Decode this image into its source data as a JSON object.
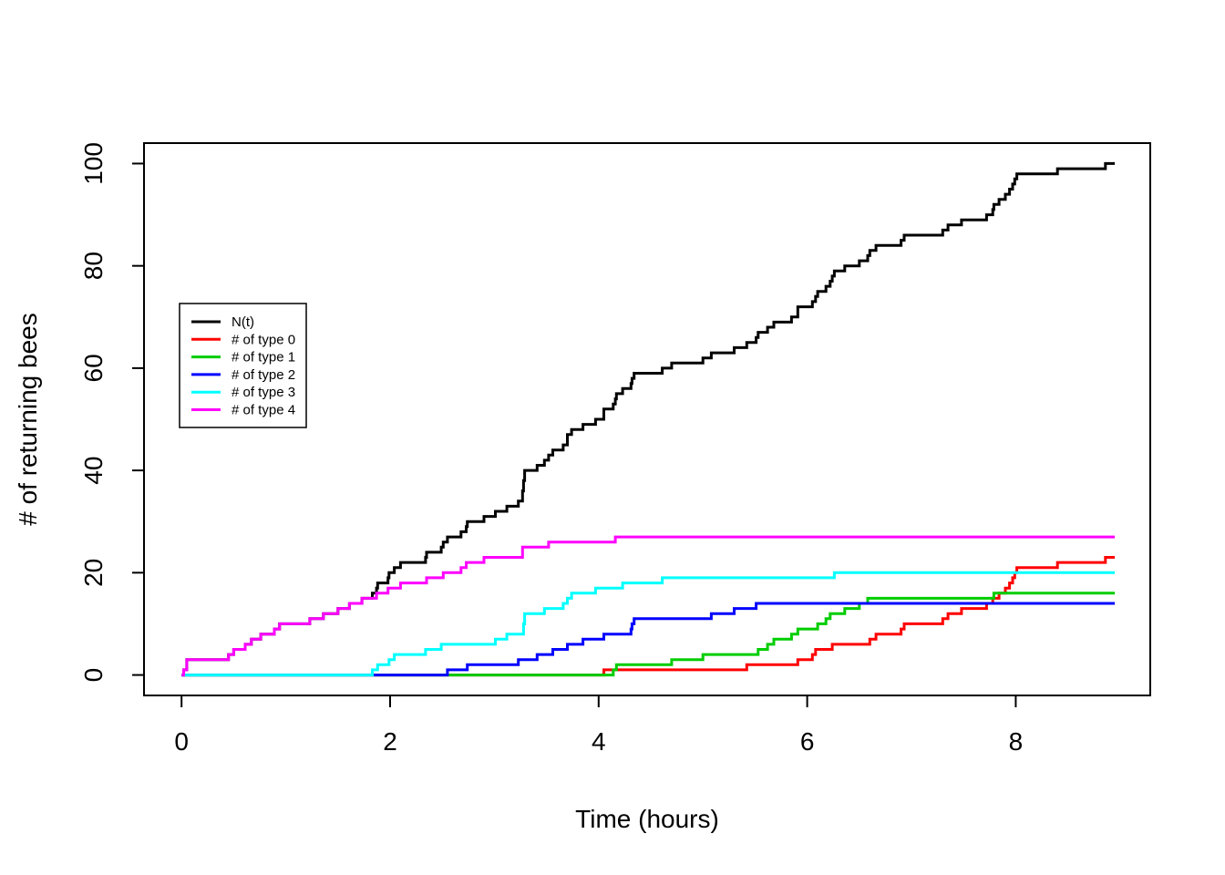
{
  "chart_data": {
    "type": "line",
    "subtype": "step",
    "title": "",
    "xlabel": "Time (hours)",
    "ylabel": "# of returning bees",
    "xticks": [
      0,
      2,
      4,
      6,
      8
    ],
    "yticks": [
      0,
      20,
      40,
      60,
      80,
      100
    ],
    "xlim": [
      -0.36,
      9.29
    ],
    "ylim": [
      -4,
      104
    ],
    "x_start": 0,
    "t_end": 8.95,
    "grid": false,
    "legend_position": "left-middle",
    "series": [
      {
        "name": "N(t)",
        "color": "#000000",
        "steps": [
          [
            0.02,
            1
          ],
          [
            0.05,
            3
          ],
          [
            0.45,
            4
          ],
          [
            0.5,
            5
          ],
          [
            0.61,
            6
          ],
          [
            0.67,
            7
          ],
          [
            0.76,
            8
          ],
          [
            0.89,
            9
          ],
          [
            0.94,
            10
          ],
          [
            1.23,
            11
          ],
          [
            1.36,
            12
          ],
          [
            1.5,
            13
          ],
          [
            1.61,
            14
          ],
          [
            1.73,
            15
          ],
          [
            1.83,
            16
          ],
          [
            1.87,
            17
          ],
          [
            1.88,
            18
          ],
          [
            1.98,
            19
          ],
          [
            1.99,
            20
          ],
          [
            2.04,
            21
          ],
          [
            2.1,
            22
          ],
          [
            2.34,
            23
          ],
          [
            2.35,
            24
          ],
          [
            2.49,
            25
          ],
          [
            2.51,
            26
          ],
          [
            2.55,
            27
          ],
          [
            2.68,
            28
          ],
          [
            2.73,
            29
          ],
          [
            2.74,
            30
          ],
          [
            2.9,
            31
          ],
          [
            3.01,
            32
          ],
          [
            3.12,
            33
          ],
          [
            3.23,
            34
          ],
          [
            3.27,
            36
          ],
          [
            3.28,
            38
          ],
          [
            3.29,
            40
          ],
          [
            3.41,
            41
          ],
          [
            3.48,
            42
          ],
          [
            3.52,
            43
          ],
          [
            3.56,
            44
          ],
          [
            3.66,
            45
          ],
          [
            3.7,
            47
          ],
          [
            3.74,
            48
          ],
          [
            3.85,
            49
          ],
          [
            3.97,
            50
          ],
          [
            4.05,
            52
          ],
          [
            4.14,
            53
          ],
          [
            4.16,
            54
          ],
          [
            4.17,
            55
          ],
          [
            4.23,
            56
          ],
          [
            4.31,
            57
          ],
          [
            4.32,
            58
          ],
          [
            4.34,
            59
          ],
          [
            4.61,
            60
          ],
          [
            4.7,
            61
          ],
          [
            5.0,
            62
          ],
          [
            5.08,
            63
          ],
          [
            5.3,
            64
          ],
          [
            5.42,
            65
          ],
          [
            5.51,
            66
          ],
          [
            5.53,
            67
          ],
          [
            5.62,
            68
          ],
          [
            5.68,
            69
          ],
          [
            5.85,
            70
          ],
          [
            5.91,
            72
          ],
          [
            6.05,
            73
          ],
          [
            6.08,
            74
          ],
          [
            6.1,
            75
          ],
          [
            6.18,
            76
          ],
          [
            6.22,
            77
          ],
          [
            6.24,
            78
          ],
          [
            6.26,
            79
          ],
          [
            6.36,
            80
          ],
          [
            6.5,
            81
          ],
          [
            6.58,
            82
          ],
          [
            6.6,
            83
          ],
          [
            6.66,
            84
          ],
          [
            6.9,
            85
          ],
          [
            6.93,
            86
          ],
          [
            7.3,
            87
          ],
          [
            7.35,
            88
          ],
          [
            7.48,
            89
          ],
          [
            7.72,
            90
          ],
          [
            7.78,
            91
          ],
          [
            7.79,
            92
          ],
          [
            7.84,
            93
          ],
          [
            7.9,
            94
          ],
          [
            7.94,
            95
          ],
          [
            7.97,
            96
          ],
          [
            7.99,
            97
          ],
          [
            8.01,
            98
          ],
          [
            8.4,
            99
          ],
          [
            8.86,
            100
          ]
        ]
      },
      {
        "name": "# of type 0",
        "color": "#FF0000",
        "steps": [
          [
            4.05,
            1
          ],
          [
            5.42,
            2
          ],
          [
            5.91,
            3
          ],
          [
            6.05,
            4
          ],
          [
            6.08,
            5
          ],
          [
            6.24,
            6
          ],
          [
            6.6,
            7
          ],
          [
            6.66,
            8
          ],
          [
            6.9,
            9
          ],
          [
            6.93,
            10
          ],
          [
            7.3,
            11
          ],
          [
            7.35,
            12
          ],
          [
            7.48,
            13
          ],
          [
            7.72,
            14
          ],
          [
            7.78,
            15
          ],
          [
            7.84,
            16
          ],
          [
            7.9,
            17
          ],
          [
            7.94,
            18
          ],
          [
            7.97,
            19
          ],
          [
            7.99,
            20
          ],
          [
            8.01,
            21
          ],
          [
            8.4,
            22
          ],
          [
            8.86,
            23
          ]
        ]
      },
      {
        "name": "# of type 1",
        "color": "#00CD00",
        "steps": [
          [
            4.14,
            1
          ],
          [
            4.17,
            2
          ],
          [
            4.7,
            3
          ],
          [
            5.0,
            4
          ],
          [
            5.53,
            5
          ],
          [
            5.62,
            6
          ],
          [
            5.68,
            7
          ],
          [
            5.85,
            8
          ],
          [
            5.91,
            9
          ],
          [
            6.1,
            10
          ],
          [
            6.18,
            11
          ],
          [
            6.22,
            12
          ],
          [
            6.36,
            13
          ],
          [
            6.5,
            14
          ],
          [
            6.58,
            15
          ],
          [
            7.79,
            16
          ]
        ]
      },
      {
        "name": "# of type 2",
        "color": "#0000FF",
        "steps": [
          [
            2.55,
            1
          ],
          [
            2.74,
            2
          ],
          [
            3.23,
            3
          ],
          [
            3.41,
            4
          ],
          [
            3.56,
            5
          ],
          [
            3.7,
            6
          ],
          [
            3.85,
            7
          ],
          [
            4.05,
            8
          ],
          [
            4.31,
            9
          ],
          [
            4.32,
            10
          ],
          [
            4.34,
            11
          ],
          [
            5.08,
            12
          ],
          [
            5.3,
            13
          ],
          [
            5.51,
            14
          ]
        ]
      },
      {
        "name": "# of type 3",
        "color": "#00FFFF",
        "steps": [
          [
            1.83,
            1
          ],
          [
            1.88,
            2
          ],
          [
            1.99,
            3
          ],
          [
            2.04,
            4
          ],
          [
            2.34,
            5
          ],
          [
            2.49,
            6
          ],
          [
            3.01,
            7
          ],
          [
            3.12,
            8
          ],
          [
            3.28,
            10
          ],
          [
            3.29,
            12
          ],
          [
            3.48,
            13
          ],
          [
            3.66,
            14
          ],
          [
            3.7,
            15
          ],
          [
            3.74,
            16
          ],
          [
            3.97,
            17
          ],
          [
            4.23,
            18
          ],
          [
            4.61,
            19
          ],
          [
            6.26,
            20
          ]
        ]
      },
      {
        "name": "# of type 4",
        "color": "#FF00FF",
        "steps": [
          [
            0.02,
            1
          ],
          [
            0.05,
            3
          ],
          [
            0.45,
            4
          ],
          [
            0.5,
            5
          ],
          [
            0.61,
            6
          ],
          [
            0.67,
            7
          ],
          [
            0.76,
            8
          ],
          [
            0.89,
            9
          ],
          [
            0.94,
            10
          ],
          [
            1.23,
            11
          ],
          [
            1.36,
            12
          ],
          [
            1.5,
            13
          ],
          [
            1.61,
            14
          ],
          [
            1.73,
            15
          ],
          [
            1.87,
            16
          ],
          [
            1.98,
            17
          ],
          [
            2.1,
            18
          ],
          [
            2.35,
            19
          ],
          [
            2.51,
            20
          ],
          [
            2.68,
            21
          ],
          [
            2.73,
            22
          ],
          [
            2.9,
            23
          ],
          [
            3.27,
            25
          ],
          [
            3.52,
            26
          ],
          [
            4.16,
            27
          ]
        ]
      }
    ]
  }
}
